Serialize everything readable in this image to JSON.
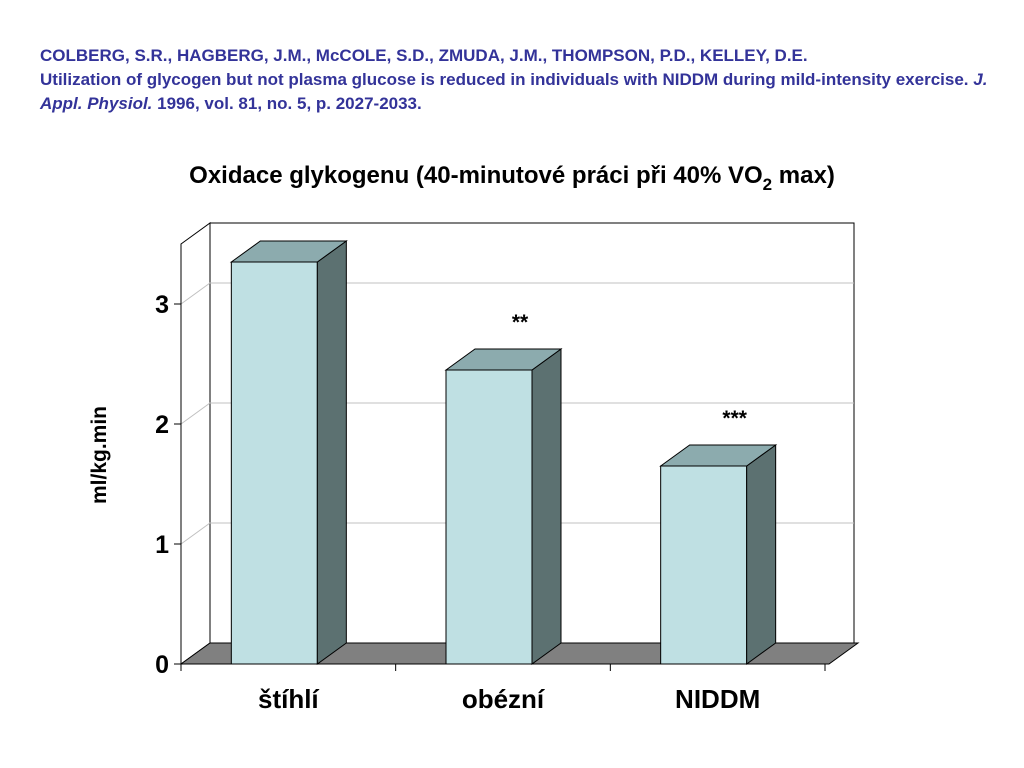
{
  "citation": {
    "authors": "COLBERG, S.R., HAGBERG, J.M., McCOLE, S.D., ZMUDA, J.M., THOMPSON, P.D., KELLEY, D.E.",
    "article_title": "Utilization of glycogen but not plasma glucose is reduced in individuals with NIDDM during mild-intensity exercise.",
    "journal": "J. Appl. Physiol.",
    "details": "1996, vol. 81, no. 5, p. 2027-2033."
  },
  "chart_data": {
    "type": "bar",
    "title": "Oxidace glykogenu (40-minutové práci při 40% VO",
    "title_subscript": "2",
    "title_suffix": " max)",
    "categories": [
      "štíhlí",
      "obézní",
      "NIDDM"
    ],
    "values": [
      3.35,
      2.45,
      1.65
    ],
    "annotations": [
      "",
      "**",
      "***"
    ],
    "xlabel": "",
    "ylabel": "ml/kg.min",
    "ylim": [
      0,
      3.5
    ],
    "yticks": [
      0,
      1,
      2,
      3
    ],
    "grid": true,
    "legend": "none",
    "colors": {
      "bar_front": "#bfe0e3",
      "bar_top": "#8cabae",
      "bar_side": "#5c7171",
      "floor": "#808080",
      "gridline": "#c0c0c0"
    }
  }
}
